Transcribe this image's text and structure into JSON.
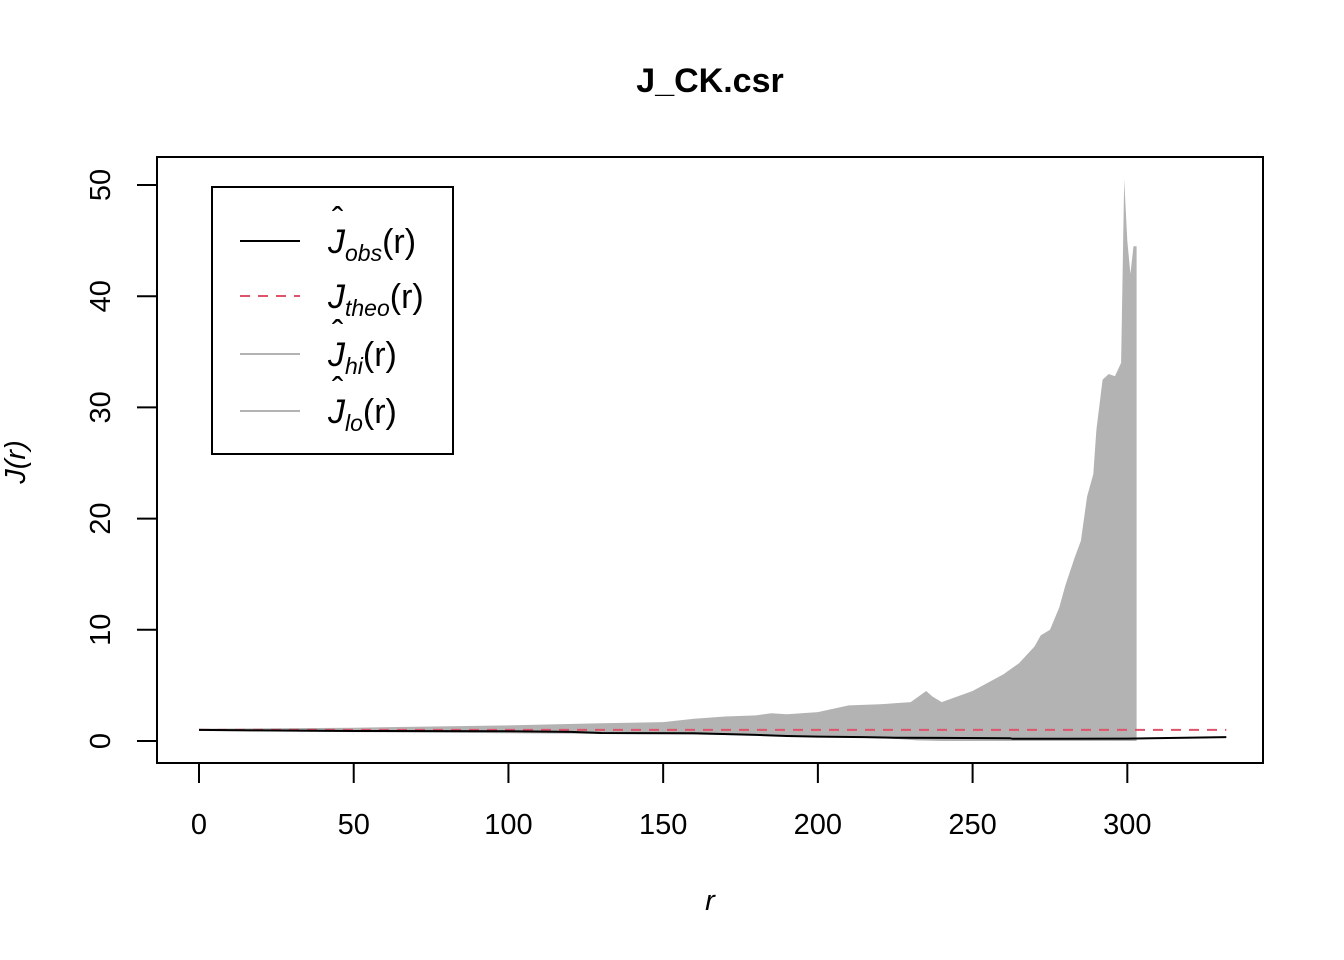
{
  "chart_data": {
    "type": "line",
    "title": "J_CK.csr",
    "xlabel": "r",
    "ylabel": "J(r)",
    "xlim": [
      0,
      332
    ],
    "ylim": [
      0,
      51
    ],
    "x_ticks": [
      0,
      50,
      100,
      150,
      200,
      250,
      300
    ],
    "y_ticks": [
      0,
      10,
      20,
      30,
      40,
      50
    ],
    "grid": false,
    "legend_position": "top-left",
    "colors": {
      "obs": "#000000",
      "theo": "#df536b",
      "envelope": "#b3b3b3"
    },
    "legend": [
      {
        "key": "obs",
        "label_main": "J",
        "label_sub": "obs",
        "label_arg": "(r)",
        "hat": true,
        "style": "solid"
      },
      {
        "key": "theo",
        "label_main": "J",
        "label_sub": "theo",
        "label_arg": "(r)",
        "hat": false,
        "style": "dashed"
      },
      {
        "key": "hi",
        "label_main": "J",
        "label_sub": "hi",
        "label_arg": "(r)",
        "hat": true,
        "style": "solid"
      },
      {
        "key": "lo",
        "label_main": "J",
        "label_sub": "lo",
        "label_arg": "(r)",
        "hat": true,
        "style": "solid"
      }
    ],
    "series": [
      {
        "name": "obs",
        "x": [
          0,
          20,
          50,
          100,
          120,
          130,
          160,
          180,
          190,
          200,
          215,
          225,
          240,
          262,
          263,
          280,
          300,
          332
        ],
        "y": [
          1.0,
          0.95,
          0.9,
          0.88,
          0.82,
          0.72,
          0.7,
          0.55,
          0.45,
          0.4,
          0.35,
          0.3,
          0.28,
          0.25,
          0.2,
          0.2,
          0.22,
          0.35
        ]
      },
      {
        "name": "theo",
        "x": [
          0,
          332
        ],
        "y": [
          1,
          1
        ]
      },
      {
        "name": "hi",
        "x": [
          0,
          50,
          100,
          130,
          150,
          160,
          170,
          180,
          185,
          190,
          200,
          210,
          220,
          230,
          235,
          237,
          240,
          250,
          260,
          265,
          270,
          272,
          275,
          278,
          280,
          283,
          285,
          287,
          289,
          290,
          292,
          294,
          296,
          298,
          299,
          300,
          301,
          302,
          303
        ],
        "y": [
          1.1,
          1.2,
          1.4,
          1.6,
          1.7,
          2.0,
          2.2,
          2.3,
          2.5,
          2.4,
          2.6,
          3.2,
          3.3,
          3.5,
          4.5,
          4.0,
          3.5,
          4.5,
          6.0,
          7.0,
          8.5,
          9.5,
          10.0,
          12.0,
          14.0,
          16.5,
          18.0,
          22.0,
          24.0,
          28.0,
          32.5,
          33.0,
          32.8,
          34.0,
          50.5,
          45.0,
          42.0,
          44.5,
          44.5
        ]
      },
      {
        "name": "lo",
        "x": [
          0,
          50,
          100,
          150,
          180,
          200,
          220,
          232,
          240,
          250,
          260,
          270,
          280,
          290,
          300,
          303
        ],
        "y": [
          0.9,
          0.8,
          0.7,
          0.6,
          0.5,
          0.4,
          0.3,
          0.05,
          0,
          0,
          0,
          0,
          0,
          0,
          0,
          0
        ]
      }
    ]
  }
}
